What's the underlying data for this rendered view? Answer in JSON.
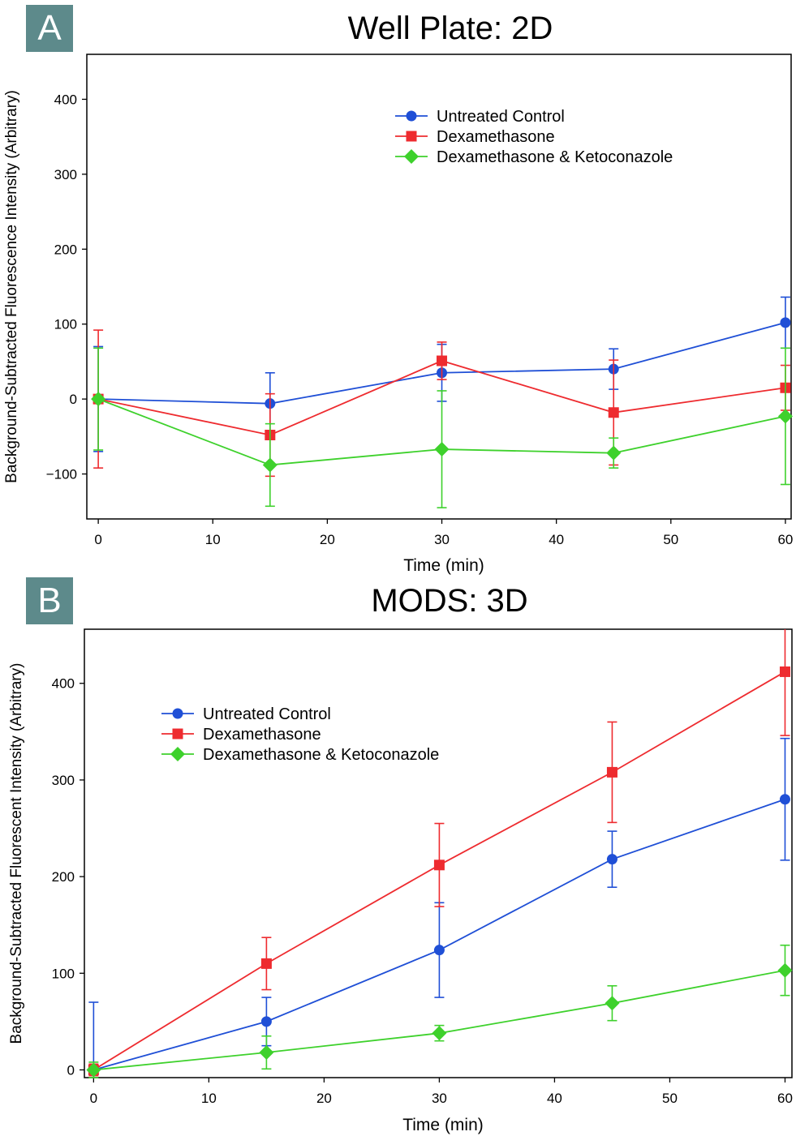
{
  "figure": {
    "colors": {
      "blue": "#1f4fd6",
      "red": "#ee2b2f",
      "green": "#3ed12c",
      "panel_tag": "#5d8a8b",
      "axis": "#000000"
    }
  },
  "chart_data": [
    {
      "type": "line",
      "panel_label": "A",
      "title": "Well Plate: 2D",
      "xlabel": "Time (min)",
      "ylabel": "Background-Subtracted Fluorescence Intensity (Arbitrary)",
      "xlim": [
        -1,
        60.5
      ],
      "ylim": [
        -160,
        460
      ],
      "xticks": [
        0,
        10,
        20,
        30,
        40,
        50,
        60
      ],
      "yticks": [
        -100,
        0,
        100,
        200,
        300,
        400
      ],
      "legend_position": "top-right",
      "x": [
        0,
        15,
        30,
        45,
        60
      ],
      "series": [
        {
          "name": "Untreated Control",
          "color": "#1f4fd6",
          "marker": "circle",
          "values": [
            0,
            -6,
            35,
            40,
            102
          ],
          "errors": [
            70,
            41,
            38,
            27,
            34
          ]
        },
        {
          "name": "Dexamethasone",
          "color": "#ee2b2f",
          "marker": "square",
          "values": [
            0,
            -48,
            51,
            -18,
            15
          ],
          "errors": [
            92,
            55,
            25,
            70,
            30
          ]
        },
        {
          "name": "Dexamethasone & Ketoconazole",
          "color": "#3ed12c",
          "marker": "diamond",
          "values": [
            0,
            -88,
            -67,
            -72,
            -23
          ],
          "errors": [
            68,
            55,
            78,
            20,
            91
          ]
        }
      ]
    },
    {
      "type": "line",
      "panel_label": "B",
      "title": "MODS: 3D",
      "xlabel": "Time (min)",
      "ylabel": "Background-Subtracted Fluorescent Intensity (Arbitrary)",
      "xlim": [
        -0.8,
        60.6
      ],
      "ylim": [
        -8,
        456
      ],
      "xticks": [
        0,
        10,
        20,
        30,
        40,
        50,
        60
      ],
      "yticks": [
        0,
        100,
        200,
        300,
        400
      ],
      "legend_position": "top-left",
      "x": [
        0,
        15,
        30,
        45,
        60
      ],
      "series": [
        {
          "name": "Untreated Control",
          "color": "#1f4fd6",
          "marker": "circle",
          "values": [
            0,
            50,
            124,
            218,
            280
          ],
          "errors": [
            70,
            25,
            49,
            29,
            63
          ]
        },
        {
          "name": "Dexamethasone",
          "color": "#ee2b2f",
          "marker": "square",
          "values": [
            0,
            110,
            212,
            308,
            412
          ],
          "errors": [
            6,
            27,
            43,
            52,
            66
          ]
        },
        {
          "name": "Dexamethasone & Ketoconazole",
          "color": "#3ed12c",
          "marker": "diamond",
          "values": [
            0,
            18,
            38,
            69,
            103
          ],
          "errors": [
            8,
            17,
            8,
            18,
            26
          ]
        }
      ]
    }
  ]
}
